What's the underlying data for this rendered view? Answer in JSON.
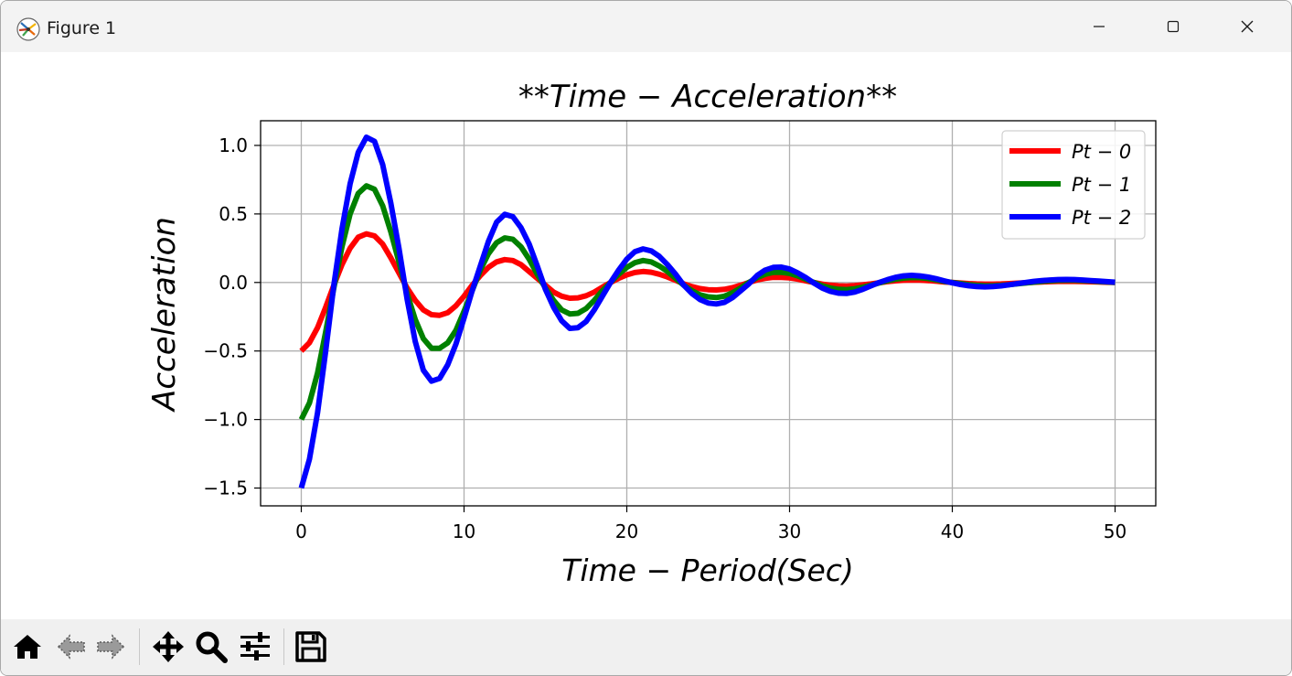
{
  "window": {
    "title": "Figure 1"
  },
  "toolbar": {
    "items": [
      "home-icon",
      "back-arrow-icon",
      "forward-arrow-icon",
      "pan-icon",
      "zoom-icon",
      "configure-subplots-icon",
      "save-icon"
    ]
  },
  "chart_data": {
    "type": "line",
    "title": "**Time − Acceleration**",
    "xlabel": "Time − Period(Sec)",
    "ylabel": "Acceleration",
    "xlim": [
      -2.5,
      52.5
    ],
    "ylim": [
      -1.63,
      1.18
    ],
    "xticks": [
      "0",
      "10",
      "20",
      "30",
      "40",
      "50"
    ],
    "yticks": [
      "1.0",
      "0.5",
      "0.0",
      "−0.5",
      "−1.0",
      "−1.5"
    ],
    "grid": true,
    "legend_position": "top-right",
    "x": [
      0,
      0.5,
      1,
      1.5,
      2,
      2.5,
      3,
      3.5,
      4,
      4.5,
      5,
      5.5,
      6,
      6.5,
      7,
      7.5,
      8,
      8.5,
      9,
      9.5,
      10,
      10.5,
      11,
      11.5,
      12,
      12.5,
      13,
      13.5,
      14,
      14.5,
      15,
      15.5,
      16,
      16.5,
      17,
      17.5,
      18,
      18.5,
      19,
      19.5,
      20,
      20.5,
      21,
      21.5,
      22,
      22.5,
      23,
      23.5,
      24,
      24.5,
      25,
      25.5,
      26,
      26.5,
      27,
      27.5,
      28,
      28.5,
      29,
      29.5,
      30,
      30.5,
      31,
      31.5,
      32,
      32.5,
      33,
      33.5,
      34,
      34.5,
      35,
      35.5,
      36,
      36.5,
      37,
      37.5,
      38,
      38.5,
      39,
      39.5,
      40,
      40.5,
      41,
      41.5,
      42,
      42.5,
      43,
      43.5,
      44,
      44.5,
      45,
      45.5,
      46,
      46.5,
      47,
      47.5,
      48,
      48.5,
      49,
      49.5,
      50
    ],
    "series": [
      {
        "name": "Pt − 0",
        "color": "#ff0000",
        "values": [
          -0.5,
          -0.44,
          -0.33,
          -0.18,
          -0.02,
          0.13,
          0.25,
          0.33,
          0.355,
          0.34,
          0.28,
          0.18,
          0.07,
          -0.04,
          -0.13,
          -0.2,
          -0.235,
          -0.24,
          -0.22,
          -0.17,
          -0.1,
          -0.02,
          0.05,
          0.11,
          0.15,
          0.167,
          0.16,
          0.13,
          0.08,
          0.03,
          -0.02,
          -0.07,
          -0.1,
          -0.115,
          -0.112,
          -0.097,
          -0.07,
          -0.035,
          0.0,
          0.03,
          0.055,
          0.073,
          0.08,
          0.075,
          0.06,
          0.04,
          0.015,
          -0.01,
          -0.03,
          -0.045,
          -0.053,
          -0.055,
          -0.05,
          -0.038,
          -0.02,
          0.0,
          0.018,
          0.03,
          0.037,
          0.037,
          0.033,
          0.024,
          0.012,
          0.0,
          -0.012,
          -0.02,
          -0.025,
          -0.026,
          -0.023,
          -0.017,
          -0.01,
          -0.002,
          0.006,
          0.012,
          0.016,
          0.018,
          0.017,
          0.014,
          0.009,
          0.004,
          0.0,
          -0.004,
          -0.008,
          -0.011,
          -0.012,
          -0.012,
          -0.011,
          -0.008,
          -0.005,
          -0.002,
          0.001,
          0.004,
          0.006,
          0.008,
          0.008,
          0.008,
          0.007,
          0.005,
          0.003,
          0.001,
          0.0
        ]
      },
      {
        "name": "Pt − 1",
        "color": "#008000",
        "values": [
          -1.0,
          -0.88,
          -0.66,
          -0.36,
          -0.04,
          0.26,
          0.5,
          0.65,
          0.705,
          0.68,
          0.56,
          0.37,
          0.15,
          -0.08,
          -0.27,
          -0.41,
          -0.48,
          -0.48,
          -0.44,
          -0.35,
          -0.21,
          -0.06,
          0.09,
          0.21,
          0.29,
          0.325,
          0.315,
          0.26,
          0.17,
          0.06,
          -0.04,
          -0.13,
          -0.2,
          -0.23,
          -0.225,
          -0.19,
          -0.13,
          -0.06,
          0.0,
          0.06,
          0.11,
          0.145,
          0.16,
          0.15,
          0.12,
          0.08,
          0.03,
          -0.02,
          -0.06,
          -0.09,
          -0.105,
          -0.11,
          -0.1,
          -0.075,
          -0.04,
          0.0,
          0.035,
          0.06,
          0.074,
          0.075,
          0.066,
          0.048,
          0.024,
          0.0,
          -0.024,
          -0.04,
          -0.05,
          -0.052,
          -0.046,
          -0.034,
          -0.02,
          -0.004,
          0.012,
          0.024,
          0.032,
          0.036,
          0.035,
          0.029,
          0.019,
          0.008,
          0.0,
          -0.008,
          -0.016,
          -0.021,
          -0.024,
          -0.024,
          -0.021,
          -0.016,
          -0.01,
          -0.004,
          0.002,
          0.008,
          0.012,
          0.015,
          0.016,
          0.016,
          0.014,
          0.011,
          0.007,
          0.003,
          0.0
        ]
      },
      {
        "name": "Pt − 2",
        "color": "#0000ff",
        "values": [
          -1.5,
          -1.29,
          -0.95,
          -0.5,
          -0.02,
          0.39,
          0.72,
          0.95,
          1.06,
          1.03,
          0.86,
          0.58,
          0.25,
          -0.12,
          -0.43,
          -0.64,
          -0.72,
          -0.7,
          -0.6,
          -0.45,
          -0.26,
          -0.06,
          0.12,
          0.3,
          0.44,
          0.497,
          0.48,
          0.4,
          0.28,
          0.12,
          -0.05,
          -0.18,
          -0.28,
          -0.335,
          -0.33,
          -0.285,
          -0.2,
          -0.1,
          0.0,
          0.09,
          0.17,
          0.225,
          0.245,
          0.23,
          0.19,
          0.13,
          0.06,
          -0.02,
          -0.08,
          -0.125,
          -0.15,
          -0.157,
          -0.145,
          -0.11,
          -0.06,
          -0.01,
          0.05,
          0.09,
          0.11,
          0.112,
          0.098,
          0.07,
          0.035,
          -0.005,
          -0.04,
          -0.065,
          -0.078,
          -0.08,
          -0.07,
          -0.05,
          -0.025,
          0.0,
          0.02,
          0.037,
          0.048,
          0.052,
          0.048,
          0.04,
          0.027,
          0.012,
          -0.003,
          -0.015,
          -0.024,
          -0.03,
          -0.032,
          -0.03,
          -0.025,
          -0.017,
          -0.008,
          0.0,
          0.008,
          0.014,
          0.018,
          0.021,
          0.022,
          0.021,
          0.018,
          0.014,
          0.01,
          0.006,
          0.002
        ]
      }
    ]
  }
}
